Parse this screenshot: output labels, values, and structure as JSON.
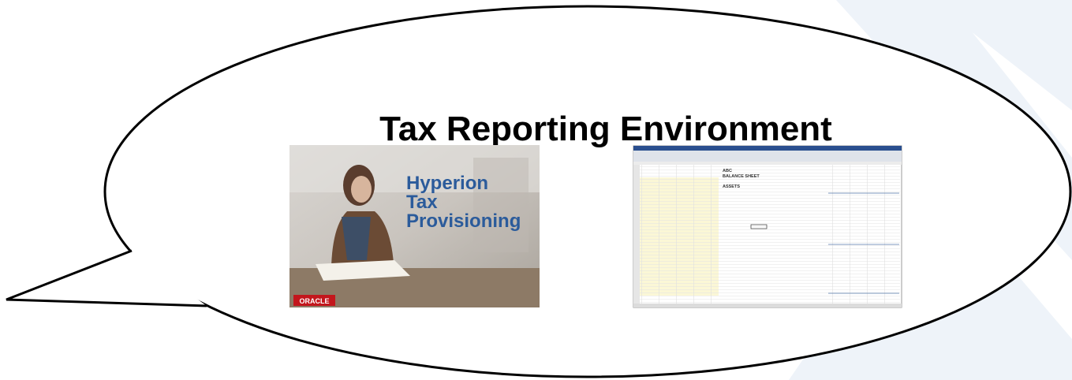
{
  "header": {
    "title": "Tax Reporting Environment"
  },
  "thumbnails": [
    {
      "lines": [
        "Hyperion",
        "Tax",
        "Provisioning"
      ],
      "brand": "ORACLE"
    },
    {
      "lines": [
        "ABC",
        "BALANCE SHEET",
        "ASSETS"
      ]
    }
  ]
}
